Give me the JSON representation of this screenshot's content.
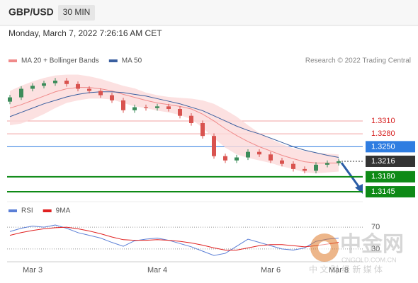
{
  "header": {
    "symbol": "GBP/USD",
    "timeframe": "30 MIN",
    "datetime": "Monday, March 7, 2022 7:26:16 AM CET"
  },
  "chart_data": [
    {
      "type": "candlestick",
      "copyright": "Research © 2022 Trading Central",
      "categories": [
        null,
        null,
        "Mar 3",
        null,
        null,
        null,
        null,
        null,
        null,
        null,
        null,
        null,
        null,
        "Mar 4",
        null,
        null,
        null,
        null,
        null,
        null,
        null,
        null,
        null,
        "Mar 6",
        null,
        null,
        null,
        null,
        null,
        "Mar 8"
      ],
      "candles": {
        "up_color": "#3c8c5a",
        "down_color": "#d9534f",
        "open": [
          1.3355,
          1.3365,
          1.3385,
          1.3392,
          1.3398,
          1.3404,
          1.3396,
          1.3385,
          1.338,
          1.337,
          1.3358,
          1.3335,
          1.3342,
          1.334,
          1.3344,
          1.3338,
          1.3322,
          1.3305,
          1.3275,
          1.3228,
          1.3218,
          1.3225,
          1.3238,
          1.3232,
          1.3218,
          1.321,
          1.3198,
          1.3194,
          1.3208,
          1.3212
        ],
        "high": [
          1.3371,
          1.3391,
          1.3398,
          1.3404,
          1.341,
          1.341,
          1.3402,
          1.3391,
          1.3386,
          1.3376,
          1.3364,
          1.3348,
          1.3348,
          1.335,
          1.335,
          1.3344,
          1.3328,
          1.3311,
          1.3281,
          1.3234,
          1.3231,
          1.3244,
          1.3244,
          1.3238,
          1.3224,
          1.3216,
          1.3204,
          1.3214,
          1.3218,
          1.3222
        ],
        "low": [
          1.3349,
          1.3359,
          1.3379,
          1.3386,
          1.3392,
          1.339,
          1.3379,
          1.3374,
          1.3364,
          1.3352,
          1.3329,
          1.3329,
          1.3334,
          1.3334,
          1.3332,
          1.3316,
          1.3299,
          1.3269,
          1.3222,
          1.3212,
          1.3212,
          1.3219,
          1.3226,
          1.3212,
          1.3204,
          1.3192,
          1.3188,
          1.3188,
          1.3202,
          1.3206
        ],
        "close": [
          1.3365,
          1.3385,
          1.3392,
          1.3398,
          1.3404,
          1.3396,
          1.3385,
          1.338,
          1.337,
          1.3358,
          1.3335,
          1.3342,
          1.334,
          1.3344,
          1.3338,
          1.3322,
          1.3305,
          1.3275,
          1.3228,
          1.3218,
          1.3225,
          1.3238,
          1.3232,
          1.3218,
          1.321,
          1.3198,
          1.3194,
          1.3208,
          1.3212,
          1.3216
        ]
      },
      "series": [
        {
          "name": "MA 20 + Bollinger Bands",
          "color": "#f08a8a",
          "band_color": "#fbd9d9",
          "values": [
            1.334,
            1.3348,
            1.3358,
            1.3368,
            1.3378,
            1.3385,
            1.3388,
            1.3388,
            1.3385,
            1.338,
            1.3372,
            1.3365,
            1.3358,
            1.3352,
            1.3348,
            1.3344,
            1.3338,
            1.3326,
            1.331,
            1.3292,
            1.3276,
            1.3262,
            1.325,
            1.324,
            1.323,
            1.3222,
            1.3215,
            1.3212,
            1.3212,
            1.3212
          ],
          "upper": [
            1.338,
            1.3392,
            1.3402,
            1.341,
            1.3416,
            1.3418,
            1.3418,
            1.3414,
            1.3408,
            1.34,
            1.3392,
            1.3386,
            1.3376,
            1.337,
            1.3366,
            1.3364,
            1.3362,
            1.3358,
            1.335,
            1.3336,
            1.332,
            1.33,
            1.3282,
            1.3268,
            1.3256,
            1.3246,
            1.324,
            1.3236,
            1.3234,
            1.3232
          ],
          "lower": [
            1.33,
            1.3304,
            1.3314,
            1.3326,
            1.334,
            1.3352,
            1.3358,
            1.3362,
            1.3362,
            1.336,
            1.3352,
            1.3344,
            1.334,
            1.3334,
            1.333,
            1.3324,
            1.3314,
            1.3294,
            1.327,
            1.3248,
            1.3232,
            1.3224,
            1.3218,
            1.3212,
            1.3204,
            1.3198,
            1.319,
            1.3188,
            1.319,
            1.3192
          ]
        },
        {
          "name": "MA 50",
          "color": "#3a5f9f",
          "values": [
            1.332,
            1.333,
            1.334,
            1.335,
            1.3358,
            1.3366,
            1.3372,
            1.3376,
            1.3378,
            1.3378,
            1.3376,
            1.3372,
            1.3368,
            1.3362,
            1.3356,
            1.335,
            1.3342,
            1.3334,
            1.3322,
            1.331,
            1.3298,
            1.3288,
            1.328,
            1.327,
            1.326,
            1.325,
            1.3242,
            1.3236,
            1.323,
            1.3225
          ]
        }
      ],
      "ylim": [
        1.3122,
        1.3427
      ],
      "levels": [
        {
          "value": 1.331,
          "label": "1.3310",
          "color": "#f2a0a0",
          "style": "text"
        },
        {
          "value": 1.328,
          "label": "1.3280",
          "color": "#f2a0a0",
          "style": "text"
        },
        {
          "value": 1.325,
          "label": "1.3250",
          "color": "#2f7de1",
          "style": "box"
        },
        {
          "value": 1.3216,
          "label": "1.3216",
          "color": "#333333",
          "style": "box"
        },
        {
          "value": 1.318,
          "label": "1.3180",
          "color": "#0e8a16",
          "style": "box"
        },
        {
          "value": 1.3145,
          "label": "1.3145",
          "color": "#0e8a16",
          "style": "box"
        }
      ]
    },
    {
      "type": "line",
      "series": [
        {
          "name": "RSI",
          "color": "#5b7fd6",
          "values": [
            62,
            68,
            72,
            70,
            74,
            68,
            60,
            55,
            50,
            42,
            35,
            45,
            48,
            50,
            46,
            40,
            34,
            26,
            18,
            22,
            35,
            48,
            42,
            36,
            30,
            28,
            32,
            44,
            48,
            50
          ]
        },
        {
          "name": "9MA",
          "color": "#e02020",
          "values": [
            55,
            60,
            64,
            67,
            69,
            70,
            67,
            63,
            58,
            52,
            47,
            46,
            46,
            47,
            46,
            44,
            41,
            37,
            32,
            28,
            28,
            32,
            36,
            38,
            38,
            36,
            34,
            36,
            39,
            42
          ]
        }
      ],
      "ylim": [
        0,
        100
      ],
      "yticks": [
        30,
        70
      ]
    }
  ],
  "watermark": {
    "brand": "中金网",
    "site": "CNGOLD.COM.CN",
    "slogan": "中 文 财 经 新 媒 体"
  }
}
